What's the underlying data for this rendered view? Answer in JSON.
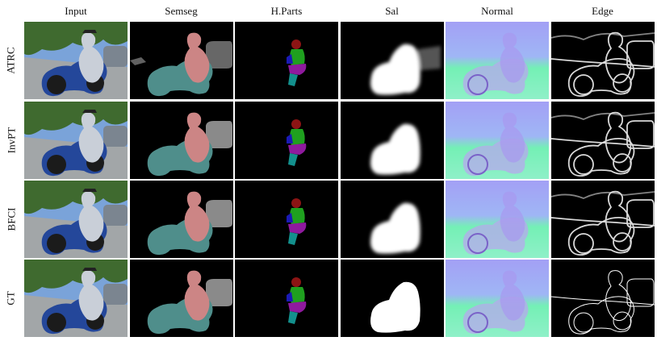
{
  "figure": {
    "columns": [
      "Input",
      "Semseg",
      "H.Parts",
      "Sal",
      "Normal",
      "Edge"
    ],
    "rows": [
      "ATRC",
      "InvPT",
      "BFCI",
      "GT"
    ],
    "colors": {
      "semseg_person": "#cc8585",
      "semseg_motorbike": "#4f8e8b",
      "semseg_car": "#8a8a8a",
      "parts_head": "#8c1414",
      "parts_torso": "#1fa01f",
      "parts_arm": "#1a1ab5",
      "parts_legs": "#8f1a9e",
      "parts_feet": "#13908d",
      "normal_sky": "#a3a0f5",
      "normal_ground": "#74f0b5",
      "sky": "#7aa3d9",
      "foliage": "#3f6a2f",
      "road": "#a2a6a8"
    }
  }
}
